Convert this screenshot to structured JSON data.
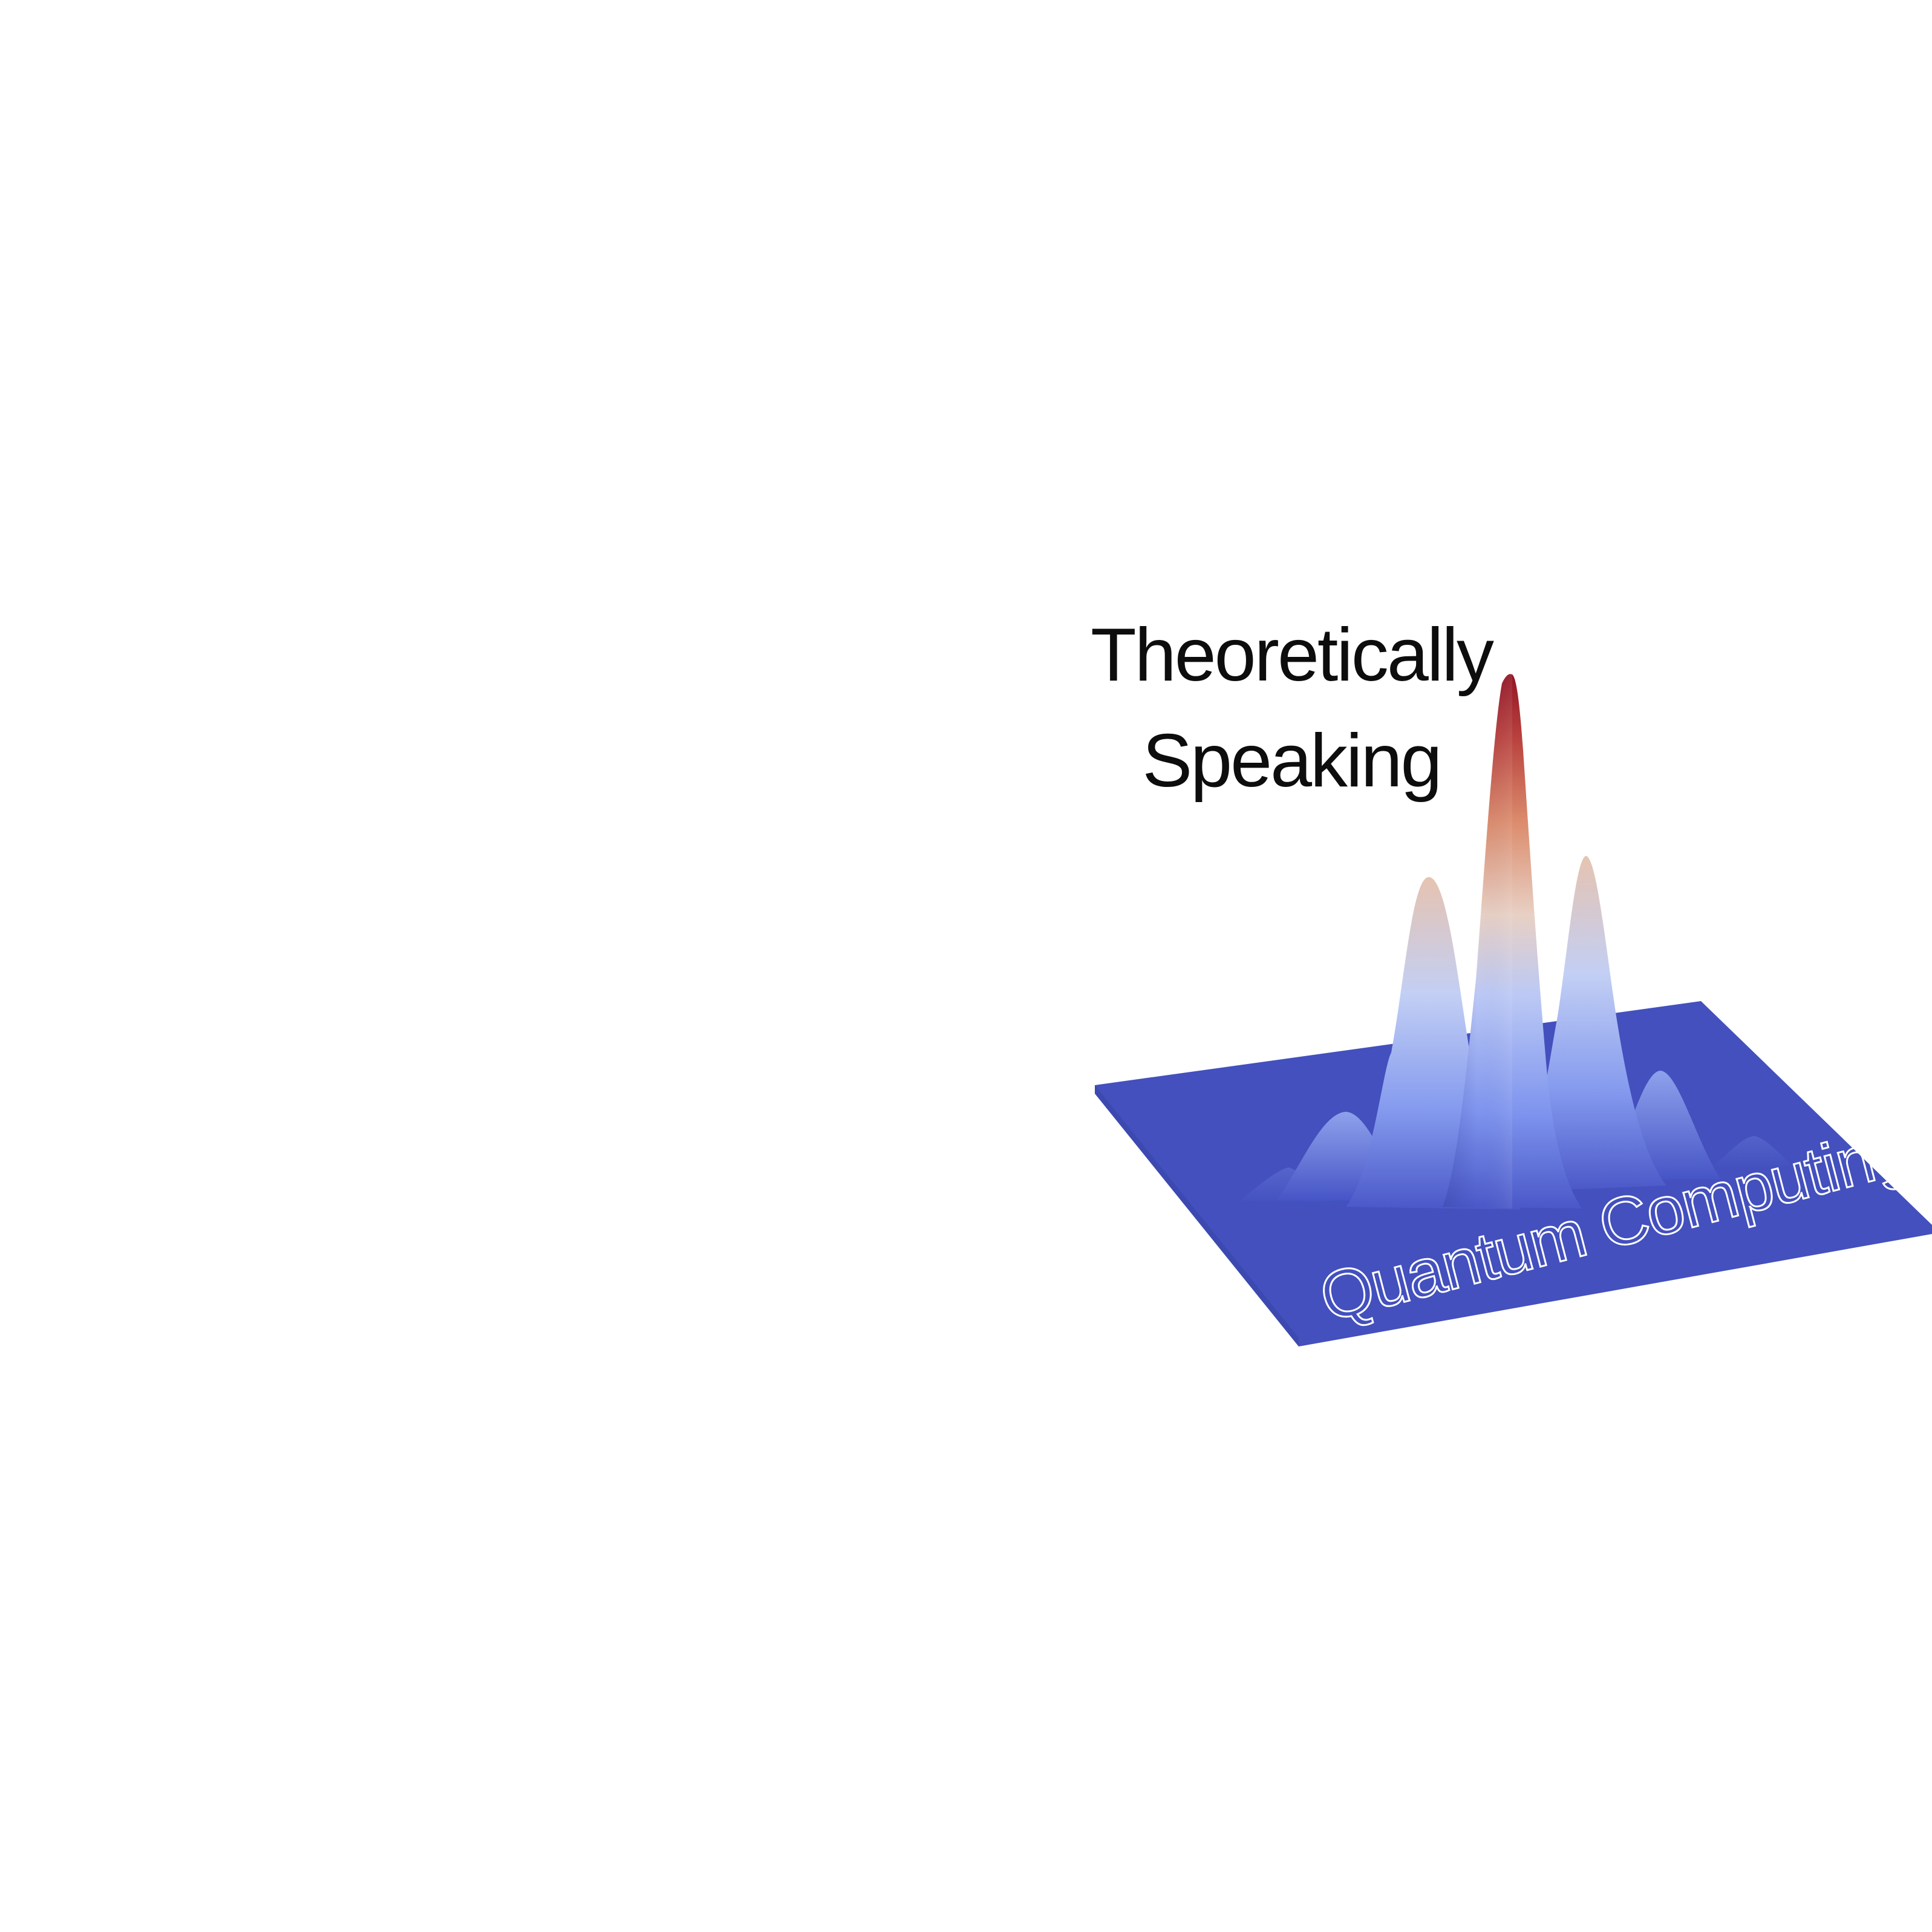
{
  "title": {
    "line1": "Theoretically",
    "line2": "Speaking"
  },
  "plane_label": "Quantum Computing",
  "colors": {
    "background": "#ffffff",
    "plane": "#4350bd",
    "peak_low": "#5665d6",
    "peak_mid": "#dcdce6",
    "peak_high": "#9a1a2a",
    "text": "#0d0d0d",
    "label": "#ffffff"
  },
  "icons": {
    "graphic": "probability-peaks-surface"
  }
}
